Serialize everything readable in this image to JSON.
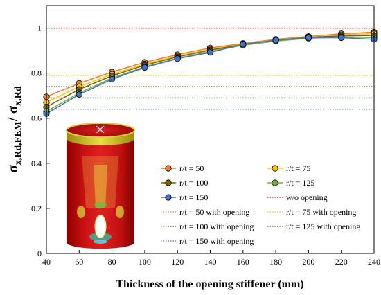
{
  "chart_data": {
    "type": "line",
    "xlabel": "Thickness of the opening stiffener (mm)",
    "ylabel_main": "σ",
    "ylabel_sub": "x,Rd,FEM",
    "ylabel_sep": "/ ",
    "ylabel_main2": "σ",
    "ylabel_sub2": "x,Rd",
    "xlim": [
      40,
      240
    ],
    "ylim": [
      0,
      1.1
    ],
    "xticks": [
      40,
      60,
      80,
      100,
      120,
      140,
      160,
      180,
      200,
      220,
      240
    ],
    "yticks": [
      0,
      0.2,
      0.4,
      0.6,
      0.8,
      1
    ],
    "ytick_labels": [
      "0",
      "0.2",
      "0.4",
      "0.6",
      "0.8",
      "1"
    ],
    "x": [
      40,
      60,
      80,
      100,
      120,
      140,
      160,
      180,
      200,
      220,
      240
    ],
    "series": [
      {
        "name": "r/t = 50",
        "color": "#ED7D31",
        "values": [
          0.695,
          0.755,
          0.805,
          0.848,
          0.882,
          0.912,
          0.932,
          0.95,
          0.963,
          0.975,
          0.982
        ]
      },
      {
        "name": "r/t = 75",
        "color": "#FFC000",
        "values": [
          0.67,
          0.74,
          0.795,
          0.84,
          0.876,
          0.906,
          0.929,
          0.947,
          0.961,
          0.97,
          0.976
        ]
      },
      {
        "name": "r/t = 100",
        "color": "#7F6000",
        "values": [
          0.65,
          0.728,
          0.788,
          0.835,
          0.872,
          0.902,
          0.927,
          0.946,
          0.959,
          0.965,
          0.968
        ]
      },
      {
        "name": "r/t = 125",
        "color": "#70AD47",
        "values": [
          0.63,
          0.712,
          0.778,
          0.828,
          0.866,
          0.896,
          0.924,
          0.942,
          0.955,
          0.96,
          0.958
        ]
      },
      {
        "name": "r/t = 150",
        "color": "#4472C4",
        "values": [
          0.62,
          0.705,
          0.773,
          0.825,
          0.864,
          0.892,
          0.928,
          0.946,
          0.957,
          0.957,
          0.95
        ]
      }
    ],
    "reference_lines": [
      {
        "name": "w/o opening",
        "color": "#FF0000",
        "value": 1.0
      },
      {
        "name": "r/t = 50 with opening",
        "color": "#ED7D31",
        "value": 0.79
      },
      {
        "name": "r/t = 75 with opening",
        "color": "#FFC000",
        "value": 0.79
      },
      {
        "name": "r/t = 100 with opening",
        "color": "#7F6000",
        "value": 0.74
      },
      {
        "name": "r/t = 125 with opening",
        "color": "#548235",
        "value": 0.69
      },
      {
        "name": "r/t = 150 with opening",
        "color": "#4472C4",
        "value": 0.64
      }
    ],
    "legend_order": [
      [
        "s",
        0
      ],
      [
        "s",
        1
      ],
      [
        "s",
        2
      ],
      [
        "s",
        3
      ],
      [
        "s",
        4
      ],
      [
        "r",
        0
      ],
      [
        "r",
        1
      ],
      [
        "r",
        2
      ],
      [
        "r",
        3
      ],
      [
        "r",
        4
      ],
      [
        "r",
        5
      ]
    ],
    "inset": "cylinder-fem-model-with-opening"
  }
}
